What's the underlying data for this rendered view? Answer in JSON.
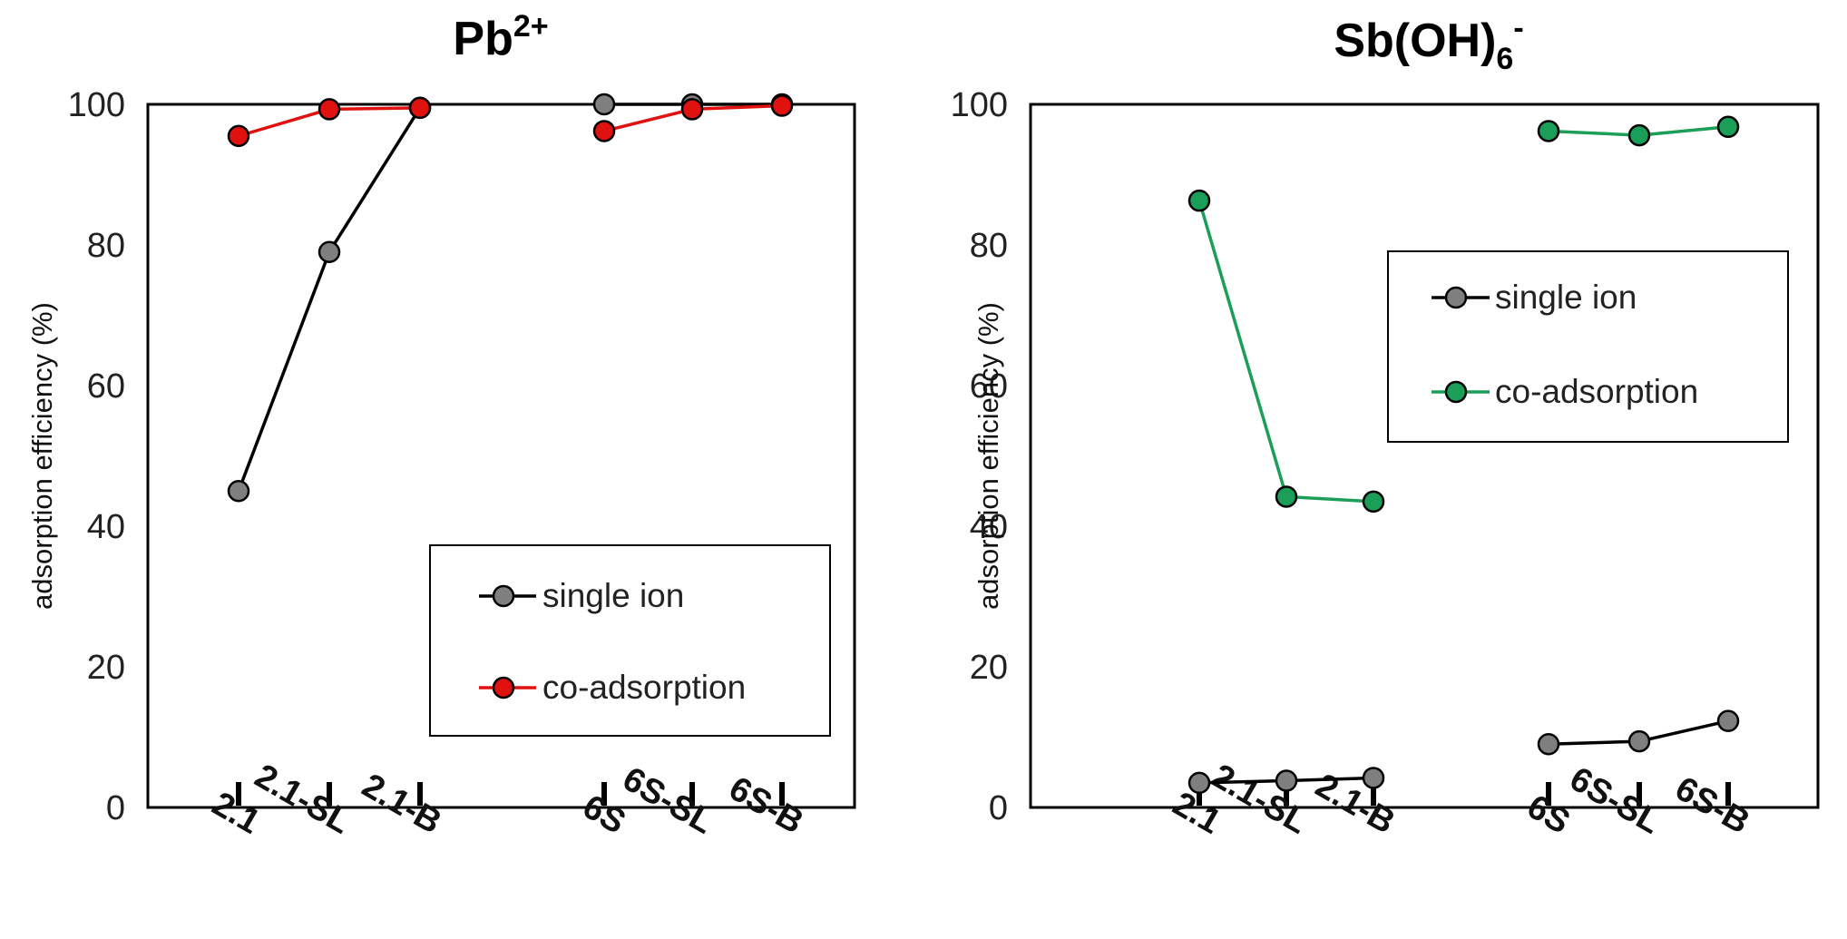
{
  "chart_data": [
    {
      "type": "line",
      "title": "Pb",
      "title_sup": "2+",
      "title_sub": "",
      "xlabel": "",
      "ylabel": "adsorption efficiency (%)",
      "ylim": [
        0,
        100
      ],
      "yticks": [
        0,
        20,
        40,
        60,
        80,
        100
      ],
      "categories": [
        "2.1",
        "2.1-SL",
        "2.1-B",
        "6S",
        "6S-SL",
        "6S-B"
      ],
      "groups": [
        [
          0,
          1,
          2
        ],
        [
          3,
          4,
          5
        ]
      ],
      "series": [
        {
          "name": "single ion",
          "color": "#7f7f7f",
          "values": [
            45,
            79,
            99.5,
            100,
            100,
            100
          ]
        },
        {
          "name": "co-adsorption",
          "color": "#e0120f",
          "values": [
            95.5,
            99.3,
            99.5,
            96.2,
            99.3,
            99.8
          ]
        }
      ],
      "line_colors": [
        "#000000",
        "#e0120f"
      ],
      "legend_position": "bottom-right",
      "grid": false
    },
    {
      "type": "line",
      "title": "Sb(OH)",
      "title_sup": "-",
      "title_sub": "6",
      "xlabel": "",
      "ylabel": "adsorption efficiency (%)",
      "ylim": [
        0,
        100
      ],
      "yticks": [
        0,
        20,
        40,
        60,
        80,
        100
      ],
      "categories": [
        "2.1",
        "2.1-SL",
        "2.1-B",
        "6S",
        "6S-SL",
        "6S-B"
      ],
      "groups": [
        [
          0,
          1,
          2
        ],
        [
          3,
          4,
          5
        ]
      ],
      "series": [
        {
          "name": "single ion",
          "color": "#7f7f7f",
          "values": [
            3.5,
            3.8,
            4.2,
            9.0,
            9.4,
            12.3
          ]
        },
        {
          "name": "co-adsorption",
          "color": "#1b9e57",
          "values": [
            86.3,
            44.2,
            43.5,
            96.2,
            95.6,
            96.8
          ]
        }
      ],
      "line_colors": [
        "#000000",
        "#1b9e57"
      ],
      "legend_position": "top-right",
      "grid": false
    }
  ]
}
